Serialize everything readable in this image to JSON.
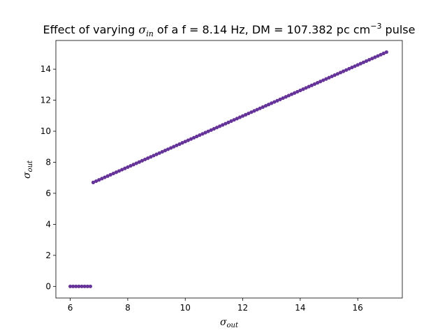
{
  "chart_data": {
    "type": "scatter",
    "title": {
      "prefix": "Effect of varying ",
      "symbol": "σ",
      "symbol_sub": "in",
      "middle": " of a f = 8.14 Hz, DM = 107.382 pc cm",
      "superscript": "−3",
      "suffix": " pulse"
    },
    "xlabel": {
      "symbol": "σ",
      "sub": "out"
    },
    "ylabel": {
      "symbol": "σ",
      "sub": "out"
    },
    "xlim": [
      5.5,
      17.55
    ],
    "ylim": [
      -0.75,
      15.85
    ],
    "xticks": [
      6,
      8,
      10,
      12,
      14,
      16
    ],
    "yticks": [
      0,
      2,
      4,
      6,
      8,
      10,
      12,
      14
    ],
    "grid": false,
    "marker_color": "#663399",
    "series": [
      {
        "segments": [
          {
            "x_start": 6.0,
            "x_end": 6.7,
            "step": 0.1,
            "y_start": 0.0,
            "y_end": 0.0
          },
          {
            "x_start": 6.8,
            "x_end": 17.0,
            "step": 0.1,
            "y_start": 6.7,
            "y_end": 15.1
          }
        ]
      }
    ]
  }
}
